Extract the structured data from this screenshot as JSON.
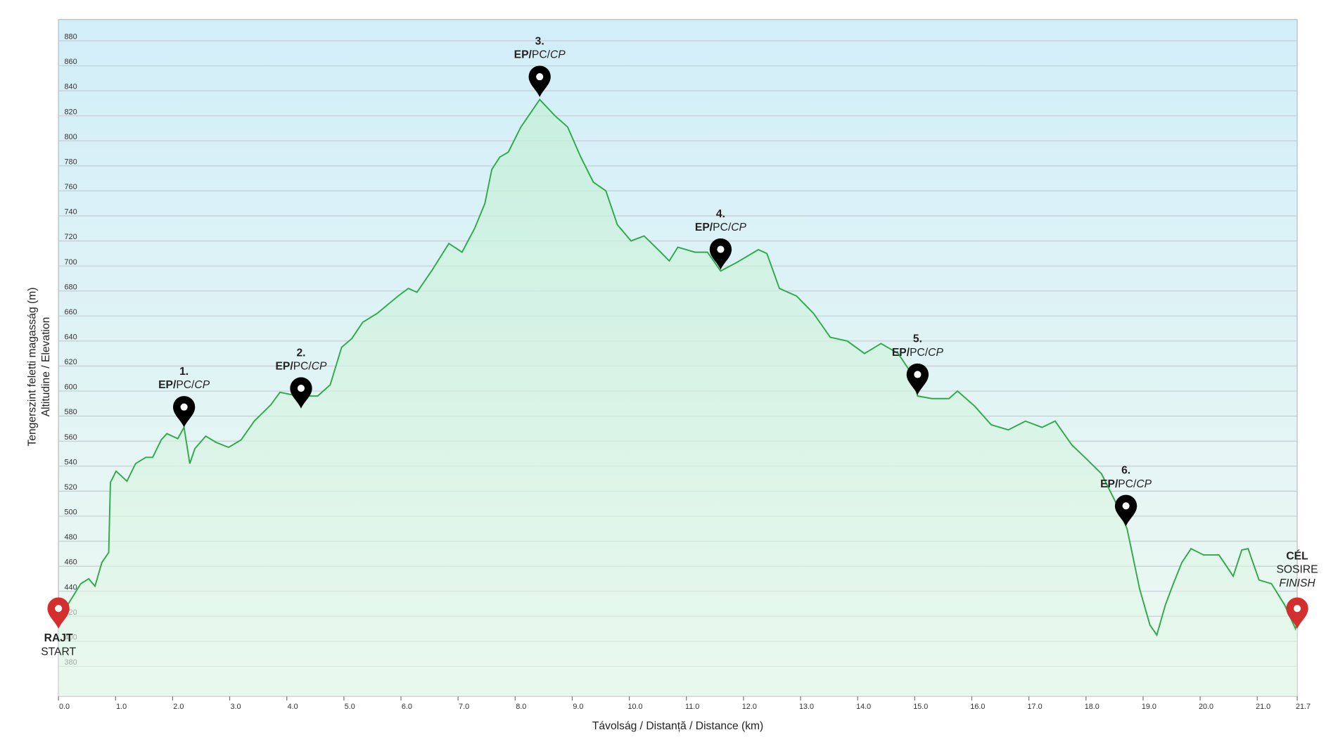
{
  "chart_data": {
    "type": "area",
    "x_label": "Távolság / Distanță / Distance (km)",
    "y_label": [
      "Tengerszint feletti magasság (m)",
      "Altitudine / Elevation"
    ],
    "xlim": [
      0,
      21.7
    ],
    "ylim": [
      356,
      897
    ],
    "xticks": [
      {
        "value": 0,
        "label": "0.0"
      },
      {
        "value": 1,
        "label": "1.0"
      },
      {
        "value": 2,
        "label": "2.0"
      },
      {
        "value": 3,
        "label": "3.0"
      },
      {
        "value": 4,
        "label": "4.0"
      },
      {
        "value": 5,
        "label": "5.0"
      },
      {
        "value": 6,
        "label": "6.0"
      },
      {
        "value": 7,
        "label": "7.0"
      },
      {
        "value": 8,
        "label": "8.0"
      },
      {
        "value": 9,
        "label": "9.0"
      },
      {
        "value": 10,
        "label": "10.0"
      },
      {
        "value": 11,
        "label": "11.0"
      },
      {
        "value": 12,
        "label": "12.0"
      },
      {
        "value": 13,
        "label": "13.0"
      },
      {
        "value": 14,
        "label": "14.0"
      },
      {
        "value": 15,
        "label": "15.0"
      },
      {
        "value": 16,
        "label": "16.0"
      },
      {
        "value": 17,
        "label": "17.0"
      },
      {
        "value": 18,
        "label": "18.0"
      },
      {
        "value": 19,
        "label": "19.0"
      },
      {
        "value": 20,
        "label": "20.0"
      },
      {
        "value": 21,
        "label": "21.0"
      },
      {
        "value": 21.7,
        "label": "21.7"
      }
    ],
    "yticks": [
      380,
      400,
      420,
      440,
      460,
      480,
      500,
      520,
      540,
      560,
      580,
      600,
      620,
      640,
      660,
      680,
      700,
      720,
      740,
      760,
      780,
      800,
      820,
      840,
      860,
      880
    ],
    "grid": true,
    "x": [
      0,
      0.16,
      0.39,
      0.53,
      0.64,
      0.76,
      0.88,
      0.91,
      1.01,
      1.2,
      1.35,
      1.53,
      1.65,
      1.8,
      1.9,
      2.09,
      2.2,
      2.3,
      2.39,
      2.58,
      2.76,
      2.98,
      3.2,
      3.43,
      3.72,
      3.88,
      4.1,
      4.25,
      4.32,
      4.54,
      4.76,
      4.96,
      5.14,
      5.33,
      5.58,
      5.95,
      6.13,
      6.28,
      6.55,
      6.84,
      7.07,
      7.29,
      7.47,
      7.59,
      7.73,
      7.88,
      8.1,
      8.43,
      8.7,
      8.92,
      9.15,
      9.37,
      9.59,
      9.79,
      10.03,
      10.26,
      10.55,
      10.7,
      10.85,
      11.15,
      11.37,
      11.6,
      11.89,
      12.26,
      12.41,
      12.63,
      12.93,
      13.23,
      13.52,
      13.82,
      14.12,
      14.41,
      14.71,
      14.93,
      15.05,
      15.3,
      15.6,
      15.75,
      16.05,
      16.34,
      16.64,
      16.94,
      17.23,
      17.46,
      17.75,
      17.98,
      18.27,
      18.5,
      18.72,
      18.94,
      19.12,
      19.24,
      19.39,
      19.53,
      19.68,
      19.84,
      20.06,
      20.33,
      20.58,
      20.73,
      20.84,
      21.03,
      21.25,
      21.48,
      21.67,
      21.7
    ],
    "series": [
      {
        "color": "#2eaa4a",
        "values": [
          415,
          429,
          446,
          450,
          444,
          463,
          471,
          527,
          536,
          528,
          542,
          547,
          547,
          561,
          566,
          562,
          571,
          542,
          554,
          564,
          559,
          555,
          561,
          576,
          589,
          599,
          597,
          589,
          596,
          596,
          605,
          635,
          642,
          655,
          662,
          676,
          682,
          679,
          697,
          718,
          711,
          730,
          750,
          777,
          787,
          791,
          811,
          833,
          820,
          811,
          787,
          767,
          760,
          733,
          720,
          724,
          711,
          704,
          715,
          711,
          711,
          696,
          703,
          713,
          710,
          682,
          676,
          662,
          643,
          640,
          630,
          638,
          630,
          615,
          596,
          594,
          594,
          600,
          588,
          573,
          569,
          576,
          571,
          576,
          557,
          547,
          534,
          513,
          490,
          442,
          413,
          405,
          429,
          446,
          463,
          474,
          469,
          469,
          452,
          473,
          474,
          449,
          446,
          429,
          410,
          415
        ]
      }
    ],
    "checkpoints": [
      {
        "number": "1.",
        "x": 2.2,
        "y": 571,
        "parts": [
          "EP/",
          "PC/",
          "CP"
        ]
      },
      {
        "number": "2.",
        "x": 4.25,
        "y": 586,
        "parts": [
          "EP/",
          "PC/",
          "CP"
        ]
      },
      {
        "number": "3.",
        "x": 8.43,
        "y": 835,
        "parts": [
          "EP/",
          "PC/",
          "CP"
        ]
      },
      {
        "number": "4.",
        "x": 11.6,
        "y": 697,
        "parts": [
          "EP/",
          "PC/",
          "CP"
        ]
      },
      {
        "number": "5.",
        "x": 15.05,
        "y": 597,
        "parts": [
          "EP/",
          "PC/",
          "CP"
        ]
      },
      {
        "number": "6.",
        "x": 18.7,
        "y": 492,
        "parts": [
          "EP/",
          "PC/",
          "CP"
        ]
      }
    ],
    "start": {
      "x": 0,
      "y": 410,
      "lines": [
        "RAJT",
        "START"
      ]
    },
    "finish": {
      "x": 21.7,
      "y": 410,
      "lines": [
        "CÉL",
        "SOSIRE",
        "FINISH"
      ]
    }
  }
}
